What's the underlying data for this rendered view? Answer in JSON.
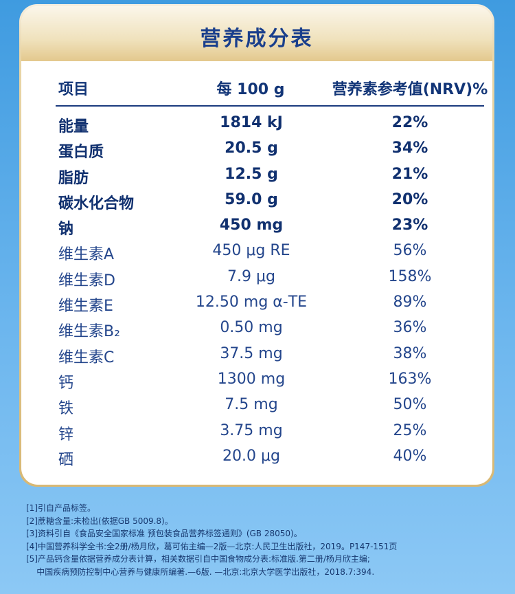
{
  "title": "营养成分表",
  "headers": {
    "item": "项目",
    "per": "每 100 g",
    "nrv": "营养素参考值(NRV)%"
  },
  "rows": [
    {
      "name": "能量",
      "per": "1814 kJ",
      "nrv": "22%",
      "bold": true
    },
    {
      "name": "蛋白质",
      "per": "20.5 g",
      "nrv": "34%",
      "bold": true
    },
    {
      "name": "脂肪",
      "per": "12.5 g",
      "nrv": "21%",
      "bold": true
    },
    {
      "name": "碳水化合物",
      "per": "59.0 g",
      "nrv": "20%",
      "bold": true
    },
    {
      "name": "钠",
      "per": "450 mg",
      "nrv": "23%",
      "bold": true
    },
    {
      "name": "维生素A",
      "per": "450 μg RE",
      "nrv": "56%",
      "bold": false
    },
    {
      "name": "维生素D",
      "per": "7.9 μg",
      "nrv": "158%",
      "bold": false
    },
    {
      "name": "维生素E",
      "per": "12.50 mg α-TE",
      "nrv": "89%",
      "bold": false
    },
    {
      "name": "维生素B₂",
      "per": "0.50 mg",
      "nrv": "36%",
      "bold": false
    },
    {
      "name": "维生素C",
      "per": "37.5 mg",
      "nrv": "38%",
      "bold": false
    },
    {
      "name": "钙",
      "per": "1300 mg",
      "nrv": "163%",
      "bold": false
    },
    {
      "name": "铁",
      "per": "7.5 mg",
      "nrv": "50%",
      "bold": false
    },
    {
      "name": "锌",
      "per": "3.75 mg",
      "nrv": "25%",
      "bold": false
    },
    {
      "name": "硒",
      "per": "20.0 μg",
      "nrv": "40%",
      "bold": false
    }
  ],
  "notes": [
    "[1]引自产品标签。",
    "[2]蔗糖含量:未检出(依据GB 5009.8)。",
    "[3]资料引自《食品安全国家标准 预包装食品营养标签通则》(GB 28050)。",
    "[4]中国营养科学全书:全2册/杨月欣，葛可佑主编—2版—北京:人民卫生出版社，2019。P147-151页",
    "[5]产品钙含量依据营养成分表计算，相关数据引自中国食物成分表:标准版.第二册/杨月欣主编;",
    "    中国疾病预防控制中心营养与健康所编著.—6版. —北京:北京大学医学出版社，2018.7:394."
  ]
}
